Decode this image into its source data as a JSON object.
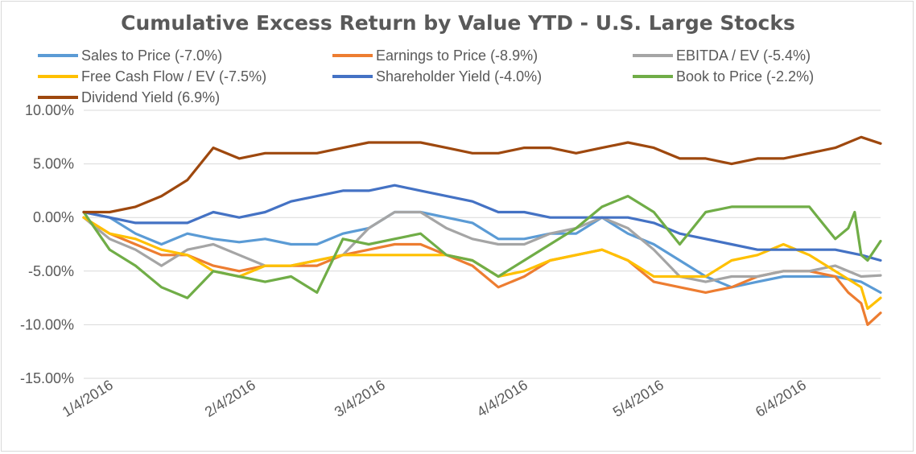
{
  "chart_data": {
    "type": "line",
    "title": "Cumulative Excess Return by Value YTD - U.S. Large Stocks",
    "xlabel": "",
    "ylabel": "",
    "ylim": [
      -15,
      10
    ],
    "y_ticks": [
      "10.00%",
      "5.00%",
      "0.00%",
      "-5.00%",
      "-10.00%",
      "-15.00%"
    ],
    "y_tick_values": [
      10,
      5,
      0,
      -5,
      -10,
      -15
    ],
    "x_ticks": [
      "1/4/2016",
      "2/4/2016",
      "3/4/2016",
      "4/4/2016",
      "5/4/2016",
      "6/4/2016"
    ],
    "x_tick_positions": [
      0,
      22,
      42,
      64,
      85,
      107
    ],
    "grid": "horizontal",
    "legend_position": "top",
    "series": [
      {
        "name": "Sales to Price (-7.0%)",
        "color": "#5b9bd5",
        "x": [
          0,
          4,
          8,
          12,
          16,
          20,
          24,
          28,
          32,
          36,
          40,
          44,
          48,
          52,
          56,
          60,
          64,
          68,
          72,
          76,
          80,
          84,
          88,
          92,
          96,
          100,
          104,
          108,
          112,
          116,
          120,
          123
        ],
        "values": [
          0.5,
          0.0,
          -1.5,
          -2.5,
          -1.5,
          -2.0,
          -2.3,
          -2.0,
          -2.5,
          -2.5,
          -1.5,
          -1.0,
          0.5,
          0.5,
          0.0,
          -0.5,
          -2.0,
          -2.0,
          -1.5,
          -1.5,
          0.0,
          -1.5,
          -2.5,
          -4.0,
          -5.5,
          -6.5,
          -6.0,
          -5.5,
          -5.5,
          -5.5,
          -6.0,
          -7.0
        ]
      },
      {
        "name": "Earnings to Price (-8.9%)",
        "color": "#ed7d31",
        "x": [
          0,
          4,
          8,
          12,
          16,
          20,
          24,
          28,
          32,
          36,
          40,
          44,
          48,
          52,
          56,
          60,
          64,
          68,
          72,
          76,
          80,
          84,
          88,
          92,
          96,
          100,
          104,
          108,
          112,
          116,
          118,
          120,
          121,
          123
        ],
        "values": [
          0.0,
          -1.5,
          -2.5,
          -3.5,
          -3.5,
          -4.5,
          -5.0,
          -4.5,
          -4.5,
          -4.5,
          -3.5,
          -3.0,
          -2.5,
          -2.5,
          -3.5,
          -4.5,
          -6.5,
          -5.5,
          -4.0,
          -3.5,
          -3.0,
          -4.0,
          -6.0,
          -6.5,
          -7.0,
          -6.5,
          -5.5,
          -5.0,
          -5.0,
          -5.5,
          -7.0,
          -8.0,
          -10.0,
          -8.9
        ]
      },
      {
        "name": "EBITDA / EV (-5.4%)",
        "color": "#a5a5a5",
        "x": [
          0,
          4,
          8,
          12,
          16,
          20,
          24,
          28,
          32,
          36,
          40,
          44,
          48,
          52,
          56,
          60,
          64,
          68,
          72,
          76,
          80,
          84,
          88,
          92,
          96,
          100,
          104,
          108,
          112,
          116,
          120,
          123
        ],
        "values": [
          0.0,
          -2.0,
          -3.0,
          -4.5,
          -3.0,
          -2.5,
          -3.5,
          -4.5,
          -4.5,
          -4.0,
          -3.5,
          -1.0,
          0.5,
          0.5,
          -1.0,
          -2.0,
          -2.5,
          -2.5,
          -1.5,
          -1.0,
          0.0,
          -1.0,
          -3.0,
          -5.5,
          -6.0,
          -5.5,
          -5.5,
          -5.0,
          -5.0,
          -4.5,
          -5.5,
          -5.4
        ]
      },
      {
        "name": "Free Cash Flow / EV (-7.5%)",
        "color": "#ffc000",
        "x": [
          0,
          4,
          8,
          12,
          16,
          20,
          24,
          28,
          32,
          36,
          40,
          44,
          48,
          52,
          56,
          60,
          64,
          68,
          72,
          76,
          80,
          84,
          88,
          92,
          96,
          100,
          104,
          108,
          112,
          116,
          120,
          121,
          123
        ],
        "values": [
          0.0,
          -1.5,
          -2.0,
          -3.0,
          -3.5,
          -5.0,
          -5.5,
          -4.5,
          -4.5,
          -4.0,
          -3.5,
          -3.5,
          -3.5,
          -3.5,
          -3.5,
          -4.0,
          -5.5,
          -5.0,
          -4.0,
          -3.5,
          -3.0,
          -4.0,
          -5.5,
          -5.5,
          -5.5,
          -4.0,
          -3.5,
          -2.5,
          -3.5,
          -5.0,
          -6.5,
          -8.5,
          -7.5
        ]
      },
      {
        "name": "Shareholder Yield (-4.0%)",
        "color": "#4472c4",
        "x": [
          0,
          4,
          8,
          12,
          16,
          20,
          24,
          28,
          32,
          36,
          40,
          44,
          48,
          52,
          56,
          60,
          64,
          68,
          72,
          76,
          80,
          84,
          88,
          92,
          96,
          100,
          104,
          108,
          112,
          116,
          120,
          123
        ],
        "values": [
          0.5,
          0.0,
          -0.5,
          -0.5,
          -0.5,
          0.5,
          0.0,
          0.5,
          1.5,
          2.0,
          2.5,
          2.5,
          3.0,
          2.5,
          2.0,
          1.5,
          0.5,
          0.5,
          0.0,
          0.0,
          0.0,
          0.0,
          -0.5,
          -1.5,
          -2.0,
          -2.5,
          -3.0,
          -3.0,
          -3.0,
          -3.0,
          -3.5,
          -4.0
        ]
      },
      {
        "name": "Book to Price (-2.2%)",
        "color": "#70ad47",
        "x": [
          0,
          4,
          8,
          12,
          16,
          20,
          24,
          28,
          32,
          36,
          40,
          44,
          48,
          52,
          56,
          60,
          64,
          68,
          72,
          76,
          80,
          84,
          88,
          92,
          96,
          100,
          104,
          108,
          112,
          116,
          118,
          119,
          120,
          121,
          123
        ],
        "values": [
          0.5,
          -3.0,
          -4.5,
          -6.5,
          -7.5,
          -5.0,
          -5.5,
          -6.0,
          -5.5,
          -7.0,
          -2.0,
          -2.5,
          -2.0,
          -1.5,
          -3.5,
          -4.0,
          -5.5,
          -4.0,
          -2.5,
          -1.0,
          1.0,
          2.0,
          0.5,
          -2.5,
          0.5,
          1.0,
          1.0,
          1.0,
          1.0,
          -2.0,
          -1.0,
          0.5,
          -3.5,
          -4.0,
          -2.2
        ]
      },
      {
        "name": "Dividend Yield (6.9%)",
        "color": "#9e480e",
        "x": [
          0,
          4,
          8,
          12,
          16,
          20,
          24,
          28,
          32,
          36,
          40,
          44,
          48,
          52,
          56,
          60,
          64,
          68,
          72,
          76,
          80,
          84,
          88,
          92,
          96,
          100,
          104,
          108,
          112,
          116,
          120,
          123
        ],
        "values": [
          0.5,
          0.5,
          1.0,
          2.0,
          3.5,
          6.5,
          5.5,
          6.0,
          6.0,
          6.0,
          6.5,
          7.0,
          7.0,
          7.0,
          6.5,
          6.0,
          6.0,
          6.5,
          6.5,
          6.0,
          6.5,
          7.0,
          6.5,
          5.5,
          5.5,
          5.0,
          5.5,
          5.5,
          6.0,
          6.5,
          7.5,
          6.9
        ]
      }
    ]
  }
}
